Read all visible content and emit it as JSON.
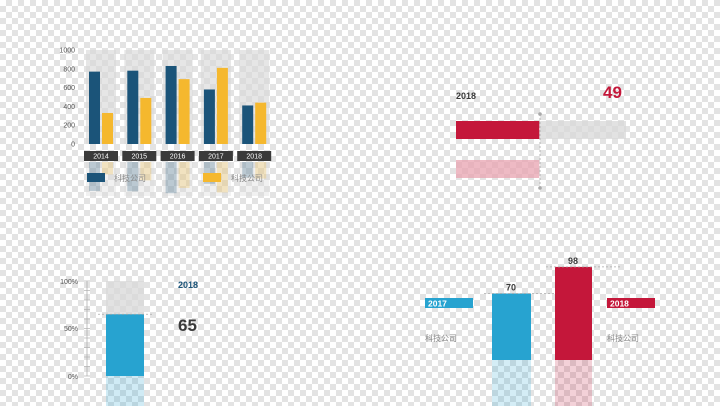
{
  "colors": {
    "navy": "#1b5479",
    "gold": "#f5b82e",
    "red": "#c4173a",
    "pink": "#e8a3b0",
    "cyan": "#27a3d0",
    "dark_label": "#3a3a3a",
    "grey_track": "#d8d8d8"
  },
  "chart_data": [
    {
      "type": "bar",
      "categories": [
        "2014",
        "2015",
        "2016",
        "2017",
        "2018"
      ],
      "series": [
        {
          "name": "科技公司",
          "values": [
            770,
            780,
            830,
            580,
            410
          ]
        },
        {
          "name": "科技公司",
          "values": [
            330,
            490,
            690,
            810,
            440
          ]
        }
      ],
      "ylim": [
        0,
        1000
      ],
      "yticks": [
        "0",
        "200",
        "400",
        "600",
        "800",
        "1000"
      ],
      "legend": "bottom"
    },
    {
      "type": "bar",
      "orientation": "horizontal",
      "label": "2018",
      "value": 49,
      "max": 100
    },
    {
      "type": "bar",
      "label": "2018",
      "value": 65,
      "max": 100,
      "yticks": [
        "0%",
        "50%",
        "100%"
      ]
    },
    {
      "type": "bar",
      "categories": [
        "2017",
        "2018"
      ],
      "values": [
        70,
        98
      ],
      "series_label": "科技公司",
      "max": 100
    }
  ]
}
